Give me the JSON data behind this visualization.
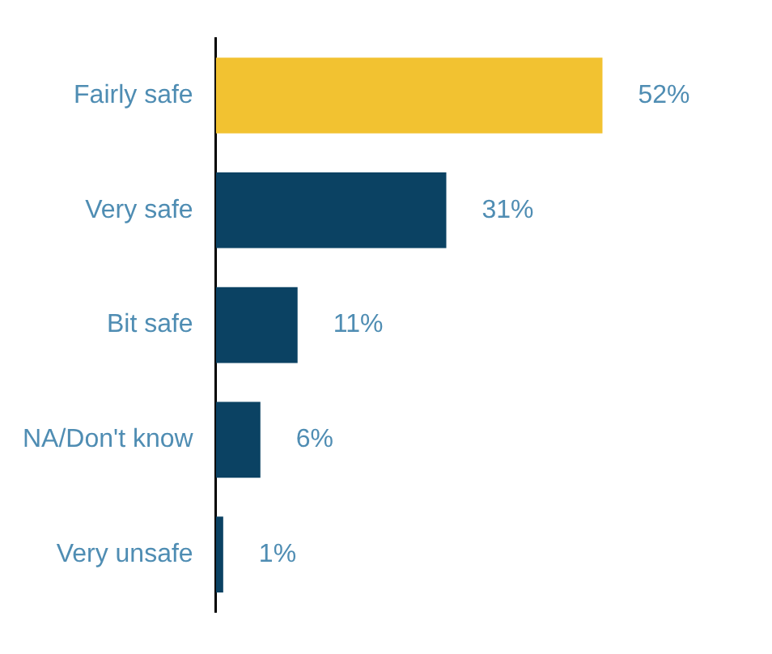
{
  "chart_data": {
    "type": "bar",
    "orientation": "horizontal",
    "categories": [
      "Fairly safe",
      "Very safe",
      "Bit safe",
      "NA/Don't know",
      "Very unsafe"
    ],
    "values": [
      52,
      31,
      11,
      6,
      1
    ],
    "colors": [
      "#f2c231",
      "#0b4263",
      "#0b4263",
      "#0b4263",
      "#0b4263"
    ],
    "value_labels": [
      "52%",
      "31%",
      "11%",
      "6%",
      "1%"
    ],
    "grid": false,
    "legend": false,
    "tick_labels": "y"
  }
}
